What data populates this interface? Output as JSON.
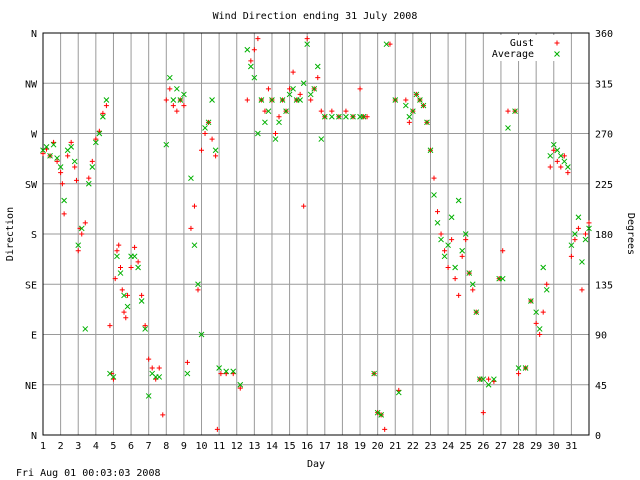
{
  "timestamp": "Fri Aug 01 00:03:03 2008",
  "chart_data": {
    "type": "scatter",
    "title": "Wind Direction ending 31 July 2008",
    "xlabel": "Day",
    "ylabel_left": "Direction",
    "ylabel_right": "Degrees",
    "xlim": [
      1,
      32
    ],
    "ylim": [
      0,
      360
    ],
    "grid": true,
    "legend_position": "top-right",
    "x_ticks": [
      1,
      2,
      3,
      4,
      5,
      6,
      7,
      8,
      9,
      10,
      11,
      12,
      13,
      14,
      15,
      16,
      17,
      18,
      19,
      20,
      21,
      22,
      23,
      24,
      25,
      26,
      27,
      28,
      29,
      30,
      31
    ],
    "y_ticks_left": [
      {
        "value": 0,
        "label": "N"
      },
      {
        "value": 45,
        "label": "NE"
      },
      {
        "value": 90,
        "label": "E"
      },
      {
        "value": 135,
        "label": "SE"
      },
      {
        "value": 180,
        "label": "S"
      },
      {
        "value": 225,
        "label": "SW"
      },
      {
        "value": 270,
        "label": "W"
      },
      {
        "value": 315,
        "label": "NW"
      },
      {
        "value": 360,
        "label": "N"
      }
    ],
    "y_ticks_right": [
      0,
      45,
      90,
      135,
      180,
      225,
      270,
      315,
      360
    ],
    "series": [
      {
        "name": "Gust",
        "marker": "+",
        "color": "#ff0000",
        "points": [
          [
            1.0,
            252
          ],
          [
            1.2,
            256
          ],
          [
            1.4,
            250
          ],
          [
            1.6,
            262
          ],
          [
            1.8,
            245
          ],
          [
            2.0,
            235
          ],
          [
            2.1,
            225
          ],
          [
            2.2,
            198
          ],
          [
            2.4,
            250
          ],
          [
            2.6,
            262
          ],
          [
            2.8,
            240
          ],
          [
            2.9,
            228
          ],
          [
            3.0,
            165
          ],
          [
            3.1,
            185
          ],
          [
            3.2,
            180
          ],
          [
            3.4,
            190
          ],
          [
            3.6,
            230
          ],
          [
            3.8,
            245
          ],
          [
            4.0,
            265
          ],
          [
            4.2,
            272
          ],
          [
            4.4,
            288
          ],
          [
            4.6,
            295
          ],
          [
            4.8,
            98
          ],
          [
            4.9,
            55
          ],
          [
            5.0,
            50
          ],
          [
            5.1,
            140
          ],
          [
            5.2,
            165
          ],
          [
            5.3,
            170
          ],
          [
            5.4,
            150
          ],
          [
            5.5,
            130
          ],
          [
            5.6,
            110
          ],
          [
            5.7,
            105
          ],
          [
            5.8,
            125
          ],
          [
            6.0,
            150
          ],
          [
            6.2,
            168
          ],
          [
            6.4,
            155
          ],
          [
            6.6,
            125
          ],
          [
            6.8,
            98
          ],
          [
            7.0,
            68
          ],
          [
            7.2,
            60
          ],
          [
            7.4,
            50
          ],
          [
            7.6,
            60
          ],
          [
            7.8,
            18
          ],
          [
            8.0,
            300
          ],
          [
            8.2,
            310
          ],
          [
            8.4,
            295
          ],
          [
            8.6,
            290
          ],
          [
            8.8,
            300
          ],
          [
            9.0,
            295
          ],
          [
            9.2,
            65
          ],
          [
            9.4,
            185
          ],
          [
            9.6,
            205
          ],
          [
            9.8,
            130
          ],
          [
            10.0,
            255
          ],
          [
            10.2,
            270
          ],
          [
            10.4,
            280
          ],
          [
            10.6,
            265
          ],
          [
            10.8,
            250
          ],
          [
            10.9,
            5
          ],
          [
            11.1,
            55
          ],
          [
            11.4,
            55
          ],
          [
            11.8,
            55
          ],
          [
            12.2,
            42
          ],
          [
            12.6,
            300
          ],
          [
            12.8,
            335
          ],
          [
            13.0,
            345
          ],
          [
            13.2,
            355
          ],
          [
            13.4,
            300
          ],
          [
            13.6,
            290
          ],
          [
            13.8,
            310
          ],
          [
            14.0,
            300
          ],
          [
            14.2,
            270
          ],
          [
            14.4,
            285
          ],
          [
            14.6,
            300
          ],
          [
            14.8,
            290
          ],
          [
            15.0,
            310
          ],
          [
            15.2,
            325
          ],
          [
            15.4,
            300
          ],
          [
            15.6,
            305
          ],
          [
            15.8,
            205
          ],
          [
            16.0,
            355
          ],
          [
            16.2,
            300
          ],
          [
            16.4,
            310
          ],
          [
            16.6,
            320
          ],
          [
            16.8,
            290
          ],
          [
            17.0,
            285
          ],
          [
            17.4,
            290
          ],
          [
            17.8,
            285
          ],
          [
            18.2,
            290
          ],
          [
            18.6,
            285
          ],
          [
            19.0,
            310
          ],
          [
            19.2,
            285
          ],
          [
            19.4,
            285
          ],
          [
            19.8,
            55
          ],
          [
            20.0,
            20
          ],
          [
            20.2,
            18
          ],
          [
            20.4,
            5
          ],
          [
            20.7,
            350
          ],
          [
            21.0,
            300
          ],
          [
            21.2,
            40
          ],
          [
            21.6,
            300
          ],
          [
            21.8,
            280
          ],
          [
            22.0,
            290
          ],
          [
            22.2,
            305
          ],
          [
            22.4,
            300
          ],
          [
            22.6,
            295
          ],
          [
            22.8,
            280
          ],
          [
            23.0,
            255
          ],
          [
            23.2,
            230
          ],
          [
            23.4,
            200
          ],
          [
            23.6,
            180
          ],
          [
            23.8,
            165
          ],
          [
            24.0,
            150
          ],
          [
            24.2,
            175
          ],
          [
            24.4,
            140
          ],
          [
            24.6,
            125
          ],
          [
            24.8,
            160
          ],
          [
            25.0,
            175
          ],
          [
            25.2,
            145
          ],
          [
            25.4,
            130
          ],
          [
            25.6,
            110
          ],
          [
            25.8,
            50
          ],
          [
            26.0,
            20
          ],
          [
            26.3,
            50
          ],
          [
            26.6,
            48
          ],
          [
            26.9,
            140
          ],
          [
            27.1,
            165
          ],
          [
            27.4,
            290
          ],
          [
            27.8,
            290
          ],
          [
            28.0,
            55
          ],
          [
            28.4,
            60
          ],
          [
            28.7,
            120
          ],
          [
            29.0,
            100
          ],
          [
            29.2,
            90
          ],
          [
            29.4,
            110
          ],
          [
            29.6,
            135
          ],
          [
            29.8,
            240
          ],
          [
            30.0,
            255
          ],
          [
            30.2,
            245
          ],
          [
            30.4,
            240
          ],
          [
            30.6,
            250
          ],
          [
            30.8,
            235
          ],
          [
            31.0,
            160
          ],
          [
            31.2,
            175
          ],
          [
            31.4,
            185
          ],
          [
            31.6,
            130
          ],
          [
            31.8,
            180
          ],
          [
            32.0,
            190
          ]
        ]
      },
      {
        "name": "Average",
        "marker": "x",
        "color": "#00b000",
        "points": [
          [
            1.0,
            255
          ],
          [
            1.2,
            258
          ],
          [
            1.4,
            250
          ],
          [
            1.6,
            260
          ],
          [
            1.8,
            248
          ],
          [
            2.0,
            240
          ],
          [
            2.2,
            210
          ],
          [
            2.4,
            255
          ],
          [
            2.6,
            258
          ],
          [
            2.8,
            245
          ],
          [
            3.0,
            170
          ],
          [
            3.2,
            185
          ],
          [
            3.4,
            95
          ],
          [
            3.6,
            225
          ],
          [
            3.8,
            240
          ],
          [
            4.0,
            262
          ],
          [
            4.2,
            270
          ],
          [
            4.4,
            285
          ],
          [
            4.6,
            300
          ],
          [
            4.8,
            55
          ],
          [
            5.0,
            52
          ],
          [
            5.2,
            160
          ],
          [
            5.4,
            145
          ],
          [
            5.6,
            125
          ],
          [
            5.8,
            115
          ],
          [
            6.0,
            160
          ],
          [
            6.2,
            160
          ],
          [
            6.4,
            150
          ],
          [
            6.6,
            120
          ],
          [
            6.8,
            95
          ],
          [
            7.0,
            35
          ],
          [
            7.2,
            55
          ],
          [
            7.4,
            52
          ],
          [
            7.6,
            52
          ],
          [
            8.0,
            260
          ],
          [
            8.2,
            320
          ],
          [
            8.4,
            300
          ],
          [
            8.6,
            310
          ],
          [
            8.8,
            300
          ],
          [
            9.0,
            305
          ],
          [
            9.2,
            55
          ],
          [
            9.4,
            230
          ],
          [
            9.6,
            170
          ],
          [
            9.8,
            135
          ],
          [
            10.0,
            90
          ],
          [
            10.2,
            275
          ],
          [
            10.4,
            280
          ],
          [
            10.6,
            300
          ],
          [
            10.8,
            255
          ],
          [
            11.0,
            60
          ],
          [
            11.4,
            57
          ],
          [
            11.8,
            57
          ],
          [
            12.2,
            45
          ],
          [
            12.6,
            345
          ],
          [
            12.8,
            330
          ],
          [
            13.0,
            320
          ],
          [
            13.2,
            270
          ],
          [
            13.4,
            300
          ],
          [
            13.6,
            280
          ],
          [
            13.8,
            290
          ],
          [
            14.0,
            300
          ],
          [
            14.2,
            265
          ],
          [
            14.4,
            280
          ],
          [
            14.6,
            300
          ],
          [
            14.8,
            290
          ],
          [
            15.0,
            305
          ],
          [
            15.2,
            310
          ],
          [
            15.4,
            300
          ],
          [
            15.6,
            300
          ],
          [
            15.8,
            315
          ],
          [
            16.0,
            350
          ],
          [
            16.2,
            305
          ],
          [
            16.4,
            310
          ],
          [
            16.6,
            330
          ],
          [
            16.8,
            265
          ],
          [
            17.0,
            285
          ],
          [
            17.4,
            285
          ],
          [
            17.8,
            285
          ],
          [
            18.2,
            285
          ],
          [
            18.6,
            285
          ],
          [
            19.0,
            285
          ],
          [
            19.2,
            285
          ],
          [
            19.8,
            55
          ],
          [
            20.0,
            20
          ],
          [
            20.2,
            18
          ],
          [
            20.5,
            350
          ],
          [
            21.0,
            300
          ],
          [
            21.2,
            38
          ],
          [
            21.6,
            295
          ],
          [
            21.8,
            285
          ],
          [
            22.0,
            290
          ],
          [
            22.2,
            305
          ],
          [
            22.4,
            300
          ],
          [
            22.6,
            295
          ],
          [
            22.8,
            280
          ],
          [
            23.0,
            255
          ],
          [
            23.2,
            215
          ],
          [
            23.4,
            190
          ],
          [
            23.6,
            175
          ],
          [
            23.8,
            160
          ],
          [
            24.0,
            170
          ],
          [
            24.2,
            195
          ],
          [
            24.4,
            150
          ],
          [
            24.6,
            210
          ],
          [
            24.8,
            165
          ],
          [
            25.0,
            180
          ],
          [
            25.2,
            145
          ],
          [
            25.4,
            135
          ],
          [
            25.6,
            110
          ],
          [
            25.8,
            50
          ],
          [
            26.0,
            50
          ],
          [
            26.3,
            45
          ],
          [
            26.6,
            50
          ],
          [
            26.9,
            140
          ],
          [
            27.1,
            140
          ],
          [
            27.4,
            275
          ],
          [
            27.8,
            290
          ],
          [
            28.0,
            60
          ],
          [
            28.4,
            60
          ],
          [
            28.7,
            120
          ],
          [
            29.0,
            110
          ],
          [
            29.2,
            95
          ],
          [
            29.4,
            150
          ],
          [
            29.6,
            130
          ],
          [
            29.8,
            250
          ],
          [
            30.0,
            260
          ],
          [
            30.2,
            255
          ],
          [
            30.4,
            250
          ],
          [
            30.6,
            245
          ],
          [
            30.8,
            240
          ],
          [
            31.0,
            170
          ],
          [
            31.2,
            180
          ],
          [
            31.4,
            195
          ],
          [
            31.6,
            155
          ],
          [
            31.8,
            175
          ],
          [
            32.0,
            185
          ]
        ]
      }
    ]
  }
}
